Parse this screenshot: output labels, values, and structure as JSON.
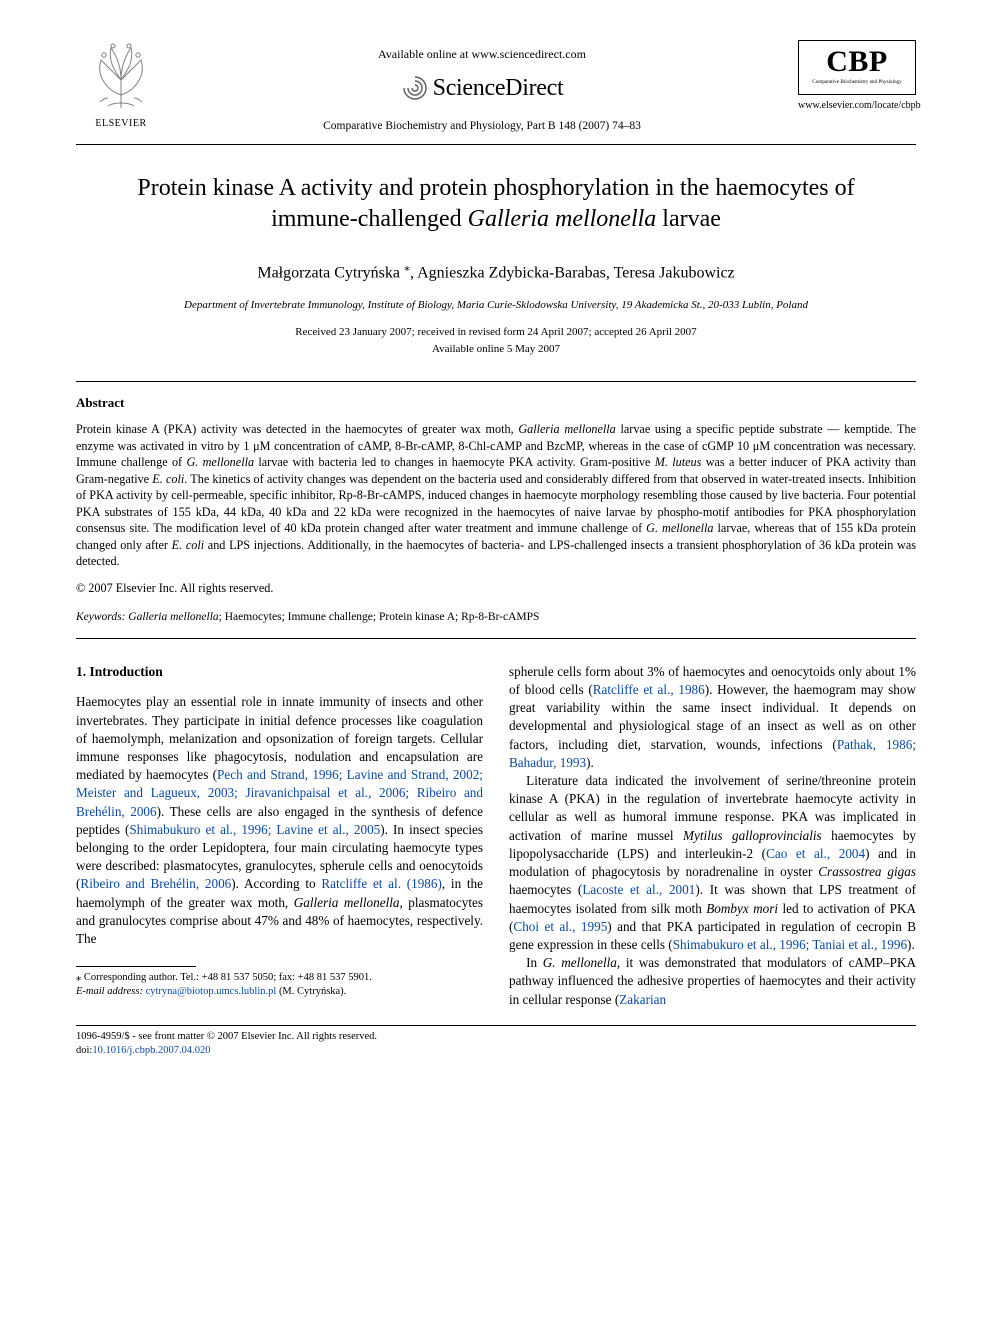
{
  "header": {
    "available_line": "Available online at www.sciencedirect.com",
    "sciencedirect_label": "ScienceDirect",
    "journal_citation": "Comparative Biochemistry and Physiology, Part B 148 (2007) 74–83",
    "elsevier_label": "ELSEVIER",
    "cbp": {
      "big": "CBP",
      "sub": "Comparative Biochemistry and Physiology",
      "url": "www.elsevier.com/locate/cbpb"
    },
    "colors": {
      "text": "#000000",
      "background": "#ffffff",
      "link": "#0b4aa0",
      "rule": "#000000"
    }
  },
  "title_line1": "Protein kinase A activity and protein phosphorylation in the haemocytes of",
  "title_line2_pre": "immune-challenged ",
  "title_species": "Galleria mellonella",
  "title_line2_post": " larvae",
  "authors": "Małgorzata Cytryńska ",
  "authors_corr": "⁎",
  "authors_rest": ", Agnieszka Zdybicka-Barabas, Teresa Jakubowicz",
  "affiliation": "Department of Invertebrate Immunology, Institute of Biology, Maria Curie-Sklodowska University, 19 Akademicka St., 20-033 Lublin, Poland",
  "dates_line1": "Received 23 January 2007; received in revised form 24 April 2007; accepted 26 April 2007",
  "dates_line2": "Available online 5 May 2007",
  "abstract_label": "Abstract",
  "abstract_html": "Protein kinase A (PKA) activity was detected in the haemocytes of greater wax moth, <span class='sp'>Galleria mellonella</span> larvae using a specific peptide substrate — kemptide. The enzyme was activated in vitro by 1 μM concentration of cAMP, 8-Br-cAMP, 8-Chl-cAMP and BzcMP, whereas in the case of cGMP 10 μM concentration was necessary. Immune challenge of <span class='sp'>G. mellonella</span> larvae with bacteria led to changes in haemocyte PKA activity. Gram-positive <span class='sp'>M. luteus</span> was a better inducer of PKA activity than Gram-negative <span class='sp'>E. coli</span>. The kinetics of activity changes was dependent on the bacteria used and considerably differed from that observed in water-treated insects. Inhibition of PKA activity by cell-permeable, specific inhibitor, Rp-8-Br-cAMPS, induced changes in haemocyte morphology resembling those caused by live bacteria. Four potential PKA substrates of 155 kDa, 44 kDa, 40 kDa and 22 kDa were recognized in the haemocytes of naive larvae by phospho-motif antibodies for PKA phosphorylation consensus site. The modification level of 40 kDa protein changed after water treatment and immune challenge of <span class='sp'>G. mellonella</span> larvae, whereas that of 155 kDa protein changed only after <span class='sp'>E. coli</span> and LPS injections. Additionally, in the haemocytes of bacteria- and LPS-challenged insects a transient phosphorylation of 36 kDa protein was detected.",
  "copyright": "© 2007 Elsevier Inc. All rights reserved.",
  "keywords_label": "Keywords:",
  "keywords_html": " <span class='sp'>Galleria mellonella</span>; Haemocytes; Immune challenge; Protein kinase A; Rp-8-Br-cAMPS",
  "intro_heading": "1. Introduction",
  "col_left_html": "<p>Haemocytes play an essential role in innate immunity of insects and other invertebrates. They participate in initial defence processes like coagulation of haemolymph, melanization and opsonization of foreign targets. Cellular immune responses like phagocytosis, nodulation and encapsulation are mediated by haemocytes (<span class='ref'>Pech and Strand, 1996; Lavine and Strand, 2002; Meister and Lagueux, 2003; Jiravanichpaisal et al., 2006; Ribeiro and Brehélin, 2006</span>). These cells are also engaged in the synthesis of defence peptides (<span class='ref'>Shimabukuro et al., 1996; Lavine et al., 2005</span>). In insect species belonging to the order Lepidoptera, four main circulating haemocyte types were described: plasmatocytes, granulocytes, spherule cells and oenocytoids (<span class='ref'>Ribeiro and Brehélin, 2006</span>). According to <span class='ref'>Ratcliffe et al. (1986)</span>, in the haemolymph of the greater wax moth, <span class='sp'>Galleria mellonella</span>, plasmatocytes and granulocytes comprise about 47% and 48% of haemocytes, respectively. The</p>",
  "col_right_html": "<p>spherule cells form about 3% of haemocytes and oenocytoids only about 1% of blood cells (<span class='ref'>Ratcliffe et al., 1986</span>). However, the haemogram may show great variability within the same insect individual. It depends on developmental and physiological stage of an insect as well as on other factors, including diet, starvation, wounds, infections (<span class='ref'>Pathak, 1986; Bahadur, 1993</span>).</p><p>Literature data indicated the involvement of serine/threonine protein kinase A (PKA) in the regulation of invertebrate haemocyte activity in cellular as well as humoral immune response. PKA was implicated in activation of marine mussel <span class='sp'>Mytilus galloprovincialis</span> haemocytes by lipopolysaccharide (LPS) and interleukin-2 (<span class='ref'>Cao et al., 2004</span>) and in modulation of phagocytosis by noradrenaline in oyster <span class='sp'>Crassostrea gigas</span> haemocytes (<span class='ref'>Lacoste et al., 2001</span>). It was shown that LPS treatment of haemocytes isolated from silk moth <span class='sp'>Bombyx mori</span> led to activation of PKA (<span class='ref'>Choi et al., 1995</span>) and that PKA participated in regulation of cecropin B gene expression in these cells (<span class='ref'>Shimabukuro et al., 1996; Taniai et al., 1996</span>).</p><p>In <span class='sp'>G. mellonella</span>, it was demonstrated that modulators of cAMP–PKA pathway influenced the adhesive properties of haemocytes and their activity in cellular response (<span class='ref'>Zakarian</span></p>",
  "footnote": {
    "corr_marker": "⁎",
    "line1": " Corresponding author. Tel.: +48 81 537 5050; fax: +48 81 537 5901.",
    "email_label": "E-mail address:",
    "email": "cytryna@biotop.umcs.lublin.pl",
    "email_post": " (M. Cytryńska)."
  },
  "bottom": {
    "left": "1096-4959/$ - see front matter © 2007 Elsevier Inc. All rights reserved.",
    "doi_label": "doi:",
    "doi": "10.1016/j.cbpb.2007.04.020"
  }
}
